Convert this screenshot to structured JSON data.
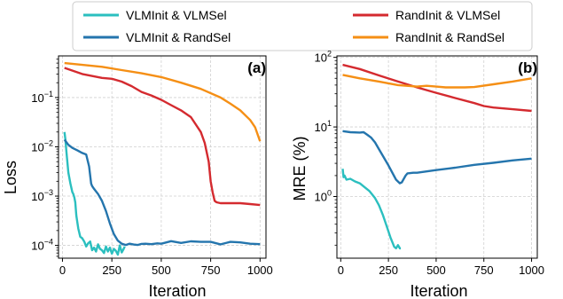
{
  "legend": [
    {
      "name": "VLMInit & VLMSel",
      "color": "#2bbfbf"
    },
    {
      "name": "VLMInit & RandSel",
      "color": "#2475ad"
    },
    {
      "name": "RandInit & VLMSel",
      "color": "#d42a2f"
    },
    {
      "name": "RandInit & RandSel",
      "color": "#f58f15"
    }
  ],
  "chart_data": [
    {
      "type": "line",
      "panel_label": "(a)",
      "xlabel": "Iteration",
      "ylabel": "Loss",
      "yscale": "log",
      "xlim": [
        -20,
        1030
      ],
      "ylim": [
        5.5e-05,
        0.7
      ],
      "xticks": [
        0,
        250,
        500,
        750,
        1000
      ],
      "yticks": [
        {
          "value": 0.1,
          "base": "10",
          "exp": "−1"
        },
        {
          "value": 0.01,
          "base": "10",
          "exp": "−2"
        },
        {
          "value": 0.001,
          "base": "10",
          "exp": "−3"
        },
        {
          "value": 0.0001,
          "base": "10",
          "exp": "−4"
        }
      ],
      "grid": true,
      "series": [
        {
          "name": "VLMInit & VLMSel",
          "color": "#2bbfbf",
          "x": [
            10,
            15,
            20,
            30,
            40,
            50,
            55,
            60,
            65,
            70,
            80,
            90,
            100,
            110,
            120,
            130,
            140,
            150,
            160,
            170,
            180,
            190,
            200,
            210,
            220,
            230,
            240,
            250,
            260,
            270,
            280,
            290,
            300,
            310,
            315
          ],
          "y": [
            0.02,
            0.014,
            0.008,
            0.003,
            0.0018,
            0.0012,
            0.0011,
            0.00095,
            0.00075,
            0.0004,
            0.00022,
            0.00015,
            0.00014,
            0.00012,
            9.5e-05,
            0.00011,
            0.00012,
            8e-05,
            9e-05,
            7.5e-05,
            0.000105,
            8.5e-05,
            8e-05,
            7e-05,
            9.5e-05,
            7.5e-05,
            9e-05,
            6.8e-05,
            8.5e-05,
            7.8e-05,
            6.5e-05,
            0.0001,
            7.2e-05,
            8.5e-05,
            9.5e-05
          ]
        },
        {
          "name": "VLMInit & RandSel",
          "color": "#2475ad",
          "x": [
            10,
            30,
            50,
            75,
            100,
            120,
            135,
            145,
            150,
            160,
            180,
            200,
            220,
            240,
            260,
            280,
            300,
            320,
            340,
            360,
            380,
            400,
            420,
            450,
            480,
            500,
            550,
            600,
            650,
            700,
            750,
            800,
            850,
            900,
            950,
            1000
          ],
          "y": [
            0.014,
            0.011,
            0.0095,
            0.0085,
            0.0075,
            0.007,
            0.004,
            0.0018,
            0.0016,
            0.0014,
            0.0011,
            0.0008,
            0.0005,
            0.00028,
            0.00017,
            0.000125,
            0.000108,
            0.000102,
            0.000108,
            0.000104,
            0.000102,
            0.000107,
            0.000108,
            0.000106,
            0.00011,
            0.000108,
            0.000122,
            0.000112,
            0.000121,
            0.000118,
            0.000118,
            0.000105,
            0.000118,
            0.000115,
            0.000108,
            0.000106
          ]
        },
        {
          "name": "RandInit & VLMSel",
          "color": "#d42a2f",
          "x": [
            10,
            100,
            200,
            250,
            300,
            350,
            400,
            450,
            500,
            550,
            600,
            650,
            700,
            720,
            740,
            750,
            760,
            770,
            780,
            800,
            850,
            900,
            950,
            1000
          ],
          "y": [
            0.4,
            0.3,
            0.25,
            0.24,
            0.21,
            0.17,
            0.13,
            0.11,
            0.09,
            0.07,
            0.055,
            0.04,
            0.02,
            0.012,
            0.005,
            0.002,
            0.0012,
            0.0008,
            0.00075,
            0.00072,
            0.00072,
            0.00072,
            0.00069,
            0.00066
          ]
        },
        {
          "name": "RandInit & RandSel",
          "color": "#f58f15",
          "x": [
            10,
            100,
            200,
            300,
            400,
            500,
            600,
            700,
            800,
            850,
            900,
            950,
            975,
            1000
          ],
          "y": [
            0.5,
            0.46,
            0.42,
            0.36,
            0.31,
            0.26,
            0.2,
            0.15,
            0.1,
            0.075,
            0.055,
            0.035,
            0.025,
            0.013
          ]
        }
      ]
    },
    {
      "type": "line",
      "panel_label": "(b)",
      "xlabel": "Iteration",
      "ylabel": "MRE (%)",
      "yscale": "log",
      "xlim": [
        -20,
        1030
      ],
      "ylim": [
        0.13,
        105
      ],
      "xticks": [
        0,
        250,
        500,
        750,
        1000
      ],
      "yticks": [
        {
          "value": 100,
          "base": "10",
          "exp": "2"
        },
        {
          "value": 10,
          "base": "10",
          "exp": "1"
        },
        {
          "value": 1,
          "base": "10",
          "exp": "0"
        }
      ],
      "grid": true,
      "series": [
        {
          "name": "VLMInit & VLMSel",
          "color": "#2bbfbf",
          "x": [
            10,
            15,
            20,
            30,
            50,
            75,
            100,
            120,
            150,
            180,
            200,
            220,
            240,
            260,
            280,
            290,
            300,
            310,
            315
          ],
          "y": [
            2.5,
            1.9,
            2.0,
            1.75,
            1.8,
            1.65,
            1.55,
            1.4,
            1.2,
            0.95,
            0.75,
            0.55,
            0.38,
            0.26,
            0.19,
            0.18,
            0.2,
            0.18,
            0.18
          ]
        },
        {
          "name": "VLMInit & RandSel",
          "color": "#2475ad",
          "x": [
            10,
            50,
            100,
            120,
            140,
            160,
            180,
            200,
            250,
            290,
            310,
            320,
            340,
            350,
            380,
            400,
            500,
            600,
            700,
            800,
            900,
            1000
          ],
          "y": [
            8.7,
            8.4,
            8.3,
            8.4,
            7.7,
            7.0,
            6.0,
            4.8,
            2.8,
            1.75,
            1.55,
            1.6,
            2.0,
            2.15,
            2.2,
            2.2,
            2.4,
            2.6,
            2.85,
            3.05,
            3.3,
            3.5
          ]
        },
        {
          "name": "RandInit & VLMSel",
          "color": "#d42a2f",
          "x": [
            10,
            100,
            200,
            300,
            400,
            500,
            600,
            700,
            750,
            800,
            900,
            1000
          ],
          "y": [
            78,
            68,
            55,
            45,
            37,
            31,
            26,
            22,
            20,
            19,
            18,
            17
          ]
        },
        {
          "name": "RandInit & RandSel",
          "color": "#f58f15",
          "x": [
            10,
            100,
            200,
            300,
            400,
            450,
            500,
            550,
            600,
            650,
            700,
            800,
            900,
            1000
          ],
          "y": [
            56,
            50,
            45,
            40,
            38,
            39,
            38,
            37,
            37,
            37,
            37.5,
            41,
            45,
            50
          ]
        }
      ]
    }
  ]
}
